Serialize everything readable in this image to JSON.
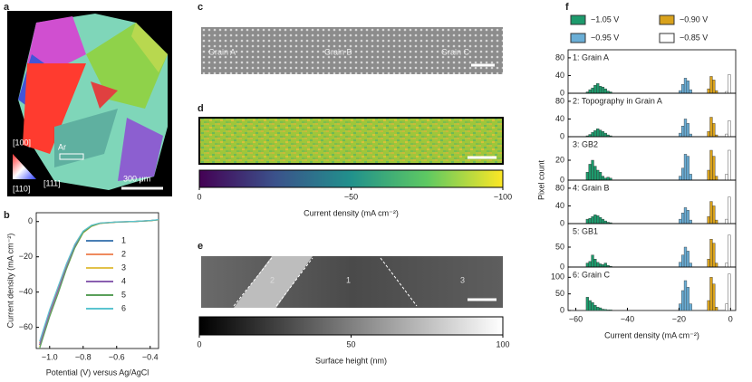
{
  "chart_data": [
    {
      "type": "line",
      "xlabel": "Potential (V) versus Ag/AgCl",
      "ylabel": "Current density (mA cm⁻²)",
      "xlim": [
        -1.08,
        -0.35
      ],
      "ylim": [
        -72,
        5
      ],
      "xticks": [
        {
          "value": -1.0,
          "label": "−1.0"
        },
        {
          "value": -0.8,
          "label": "−0.8"
        },
        {
          "value": -0.6,
          "label": "−0.6"
        },
        {
          "value": -0.4,
          "label": "−0.4"
        }
      ],
      "yticks": [
        0,
        {
          "value": -20,
          "label": "−20"
        },
        {
          "value": -40,
          "label": "−40"
        },
        {
          "value": -60,
          "label": "−60"
        }
      ],
      "x": [
        -1.06,
        -1.0,
        -0.95,
        -0.9,
        -0.85,
        -0.8,
        -0.75,
        -0.7,
        -0.6,
        -0.5,
        -0.4,
        -0.35
      ],
      "series": [
        {
          "name": "1",
          "color": "#4a7fb5",
          "values": [
            -70,
            -52,
            -39,
            -26,
            -14,
            -6,
            -2.5,
            -1,
            -0.3,
            0,
            0.5,
            1
          ]
        },
        {
          "name": "2",
          "color": "#ef8a5e",
          "values": [
            -69,
            -51,
            -38,
            -25,
            -13,
            -5.5,
            -2.2,
            -0.9,
            -0.2,
            0.1,
            0.6,
            1
          ]
        },
        {
          "name": "3",
          "color": "#e2c14a",
          "values": [
            -71,
            -53,
            -40,
            -27,
            -15,
            -6.5,
            -2.8,
            -1.1,
            -0.4,
            0,
            0.4,
            0.9
          ]
        },
        {
          "name": "4",
          "color": "#8a5fb0",
          "values": [
            -70,
            -52,
            -39,
            -26,
            -14,
            -6,
            -2.4,
            -1,
            -0.3,
            0,
            0.5,
            1
          ]
        },
        {
          "name": "5",
          "color": "#5aa05a",
          "values": [
            -72,
            -54,
            -41,
            -27,
            -15,
            -6.2,
            -2.6,
            -1,
            -0.3,
            0,
            0.5,
            1
          ]
        },
        {
          "name": "6",
          "color": "#5bc4d0",
          "values": [
            -68,
            -50,
            -37,
            -24,
            -13,
            -5.4,
            -2.1,
            -0.8,
            -0.2,
            0.1,
            0.6,
            1.1
          ]
        }
      ]
    },
    {
      "type": "histogram",
      "xlabel": "Current density (mA cm⁻²)",
      "ylabel": "Pixel count",
      "xlim": [
        -63,
        2
      ],
      "xticks": [
        {
          "value": -60,
          "label": "−60"
        },
        {
          "value": -40,
          "label": "−40"
        },
        {
          "value": -20,
          "label": "−20"
        },
        0
      ],
      "series": [
        {
          "name": "−1.05 V",
          "color": "#1d9a6c",
          "bins": [
            -56,
            -55,
            -54,
            -53,
            -52,
            -51,
            -50,
            -49,
            -48,
            -47,
            -46
          ]
        },
        {
          "name": "−0.95 V",
          "color": "#6aaed6",
          "bins": [
            -20,
            -19,
            -18,
            -17,
            -16,
            -15
          ]
        },
        {
          "name": "−0.90 V",
          "color": "#d9a21c",
          "bins": [
            -9,
            -8,
            -7,
            -6,
            -5
          ]
        },
        {
          "name": "−0.85 V",
          "color": "#ffffff",
          "bins": [
            -2,
            -1,
            0
          ]
        }
      ],
      "panels": [
        {
          "title": "1: Grain A",
          "ylim": [
            0,
            90
          ],
          "yticks": [
            0,
            40,
            80
          ],
          "values": [
            [
              3,
              8,
              12,
              18,
              22,
              16,
              14,
              10,
              5,
              3
            ],
            [
              6,
              20,
              34,
              28,
              8
            ],
            [
              10,
              38,
              30,
              6
            ],
            [
              4,
              42
            ]
          ]
        },
        {
          "title": "2: Topography in Grain A",
          "ylim": [
            0,
            90
          ],
          "yticks": [
            0,
            40,
            80
          ],
          "values": [
            [
              2,
              5,
              10,
              14,
              18,
              15,
              12,
              8,
              4,
              2
            ],
            [
              8,
              24,
              40,
              30,
              6
            ],
            [
              12,
              44,
              30,
              4
            ],
            [
              6,
              36
            ]
          ]
        },
        {
          "title": "3: GB2",
          "ylim": [
            0,
            40
          ],
          "yticks": [
            0,
            20
          ],
          "values": [
            [
              8,
              16,
              20,
              14,
              10,
              8,
              4,
              2,
              3,
              2
            ],
            [
              4,
              12,
              26,
              24,
              6
            ],
            [
              10,
              30,
              24,
              4
            ],
            [
              6,
              30
            ]
          ]
        },
        {
          "title": "4: Grain B",
          "ylim": [
            0,
            90
          ],
          "yticks": [
            0,
            40,
            80
          ],
          "values": [
            [
              10,
              12,
              16,
              20,
              18,
              14,
              10,
              6,
              3,
              2
            ],
            [
              10,
              24,
              36,
              30,
              8
            ],
            [
              16,
              50,
              40,
              8
            ],
            [
              10,
              60
            ]
          ]
        },
        {
          "title": "5: GB1",
          "ylim": [
            0,
            100
          ],
          "yticks": [
            0,
            50
          ],
          "values": [
            [
              10,
              14,
              30,
              20,
              12,
              8,
              6,
              10,
              4,
              2
            ],
            [
              12,
              30,
              50,
              40,
              10
            ],
            [
              20,
              70,
              60,
              10
            ],
            [
              10,
              80
            ]
          ]
        },
        {
          "title": "6: Grain C",
          "ylim": [
            0,
            120
          ],
          "yticks": [
            0,
            50,
            100
          ],
          "values": [
            [
              40,
              30,
              24,
              16,
              10,
              8,
              4,
              3,
              2,
              2
            ],
            [
              20,
              60,
              90,
              70,
              20
            ],
            [
              30,
              100,
              80,
              10
            ],
            [
              20,
              110
            ]
          ]
        }
      ]
    }
  ],
  "figure": {
    "panel_labels": [
      "a",
      "b",
      "c",
      "d",
      "e",
      "f"
    ],
    "a_texts": [
      "[100]",
      "[110]",
      "[111]",
      "Ar",
      "300 μm"
    ],
    "c_texts": [
      "Grain A",
      "Grain B",
      "Grain C"
    ],
    "d_colorbar": {
      "lim": [
        0,
        -100
      ],
      "ticks": [
        0,
        {
          "value": -50,
          "label": "−50"
        },
        {
          "value": -100,
          "label": "−100"
        }
      ],
      "label": "Current density (mA cm⁻²)"
    },
    "e_texts": [
      "2",
      "1",
      "3"
    ],
    "e_colorbar": {
      "lim": [
        0,
        100
      ],
      "ticks": [
        0,
        50,
        100
      ],
      "label": "Surface height (nm)"
    }
  }
}
